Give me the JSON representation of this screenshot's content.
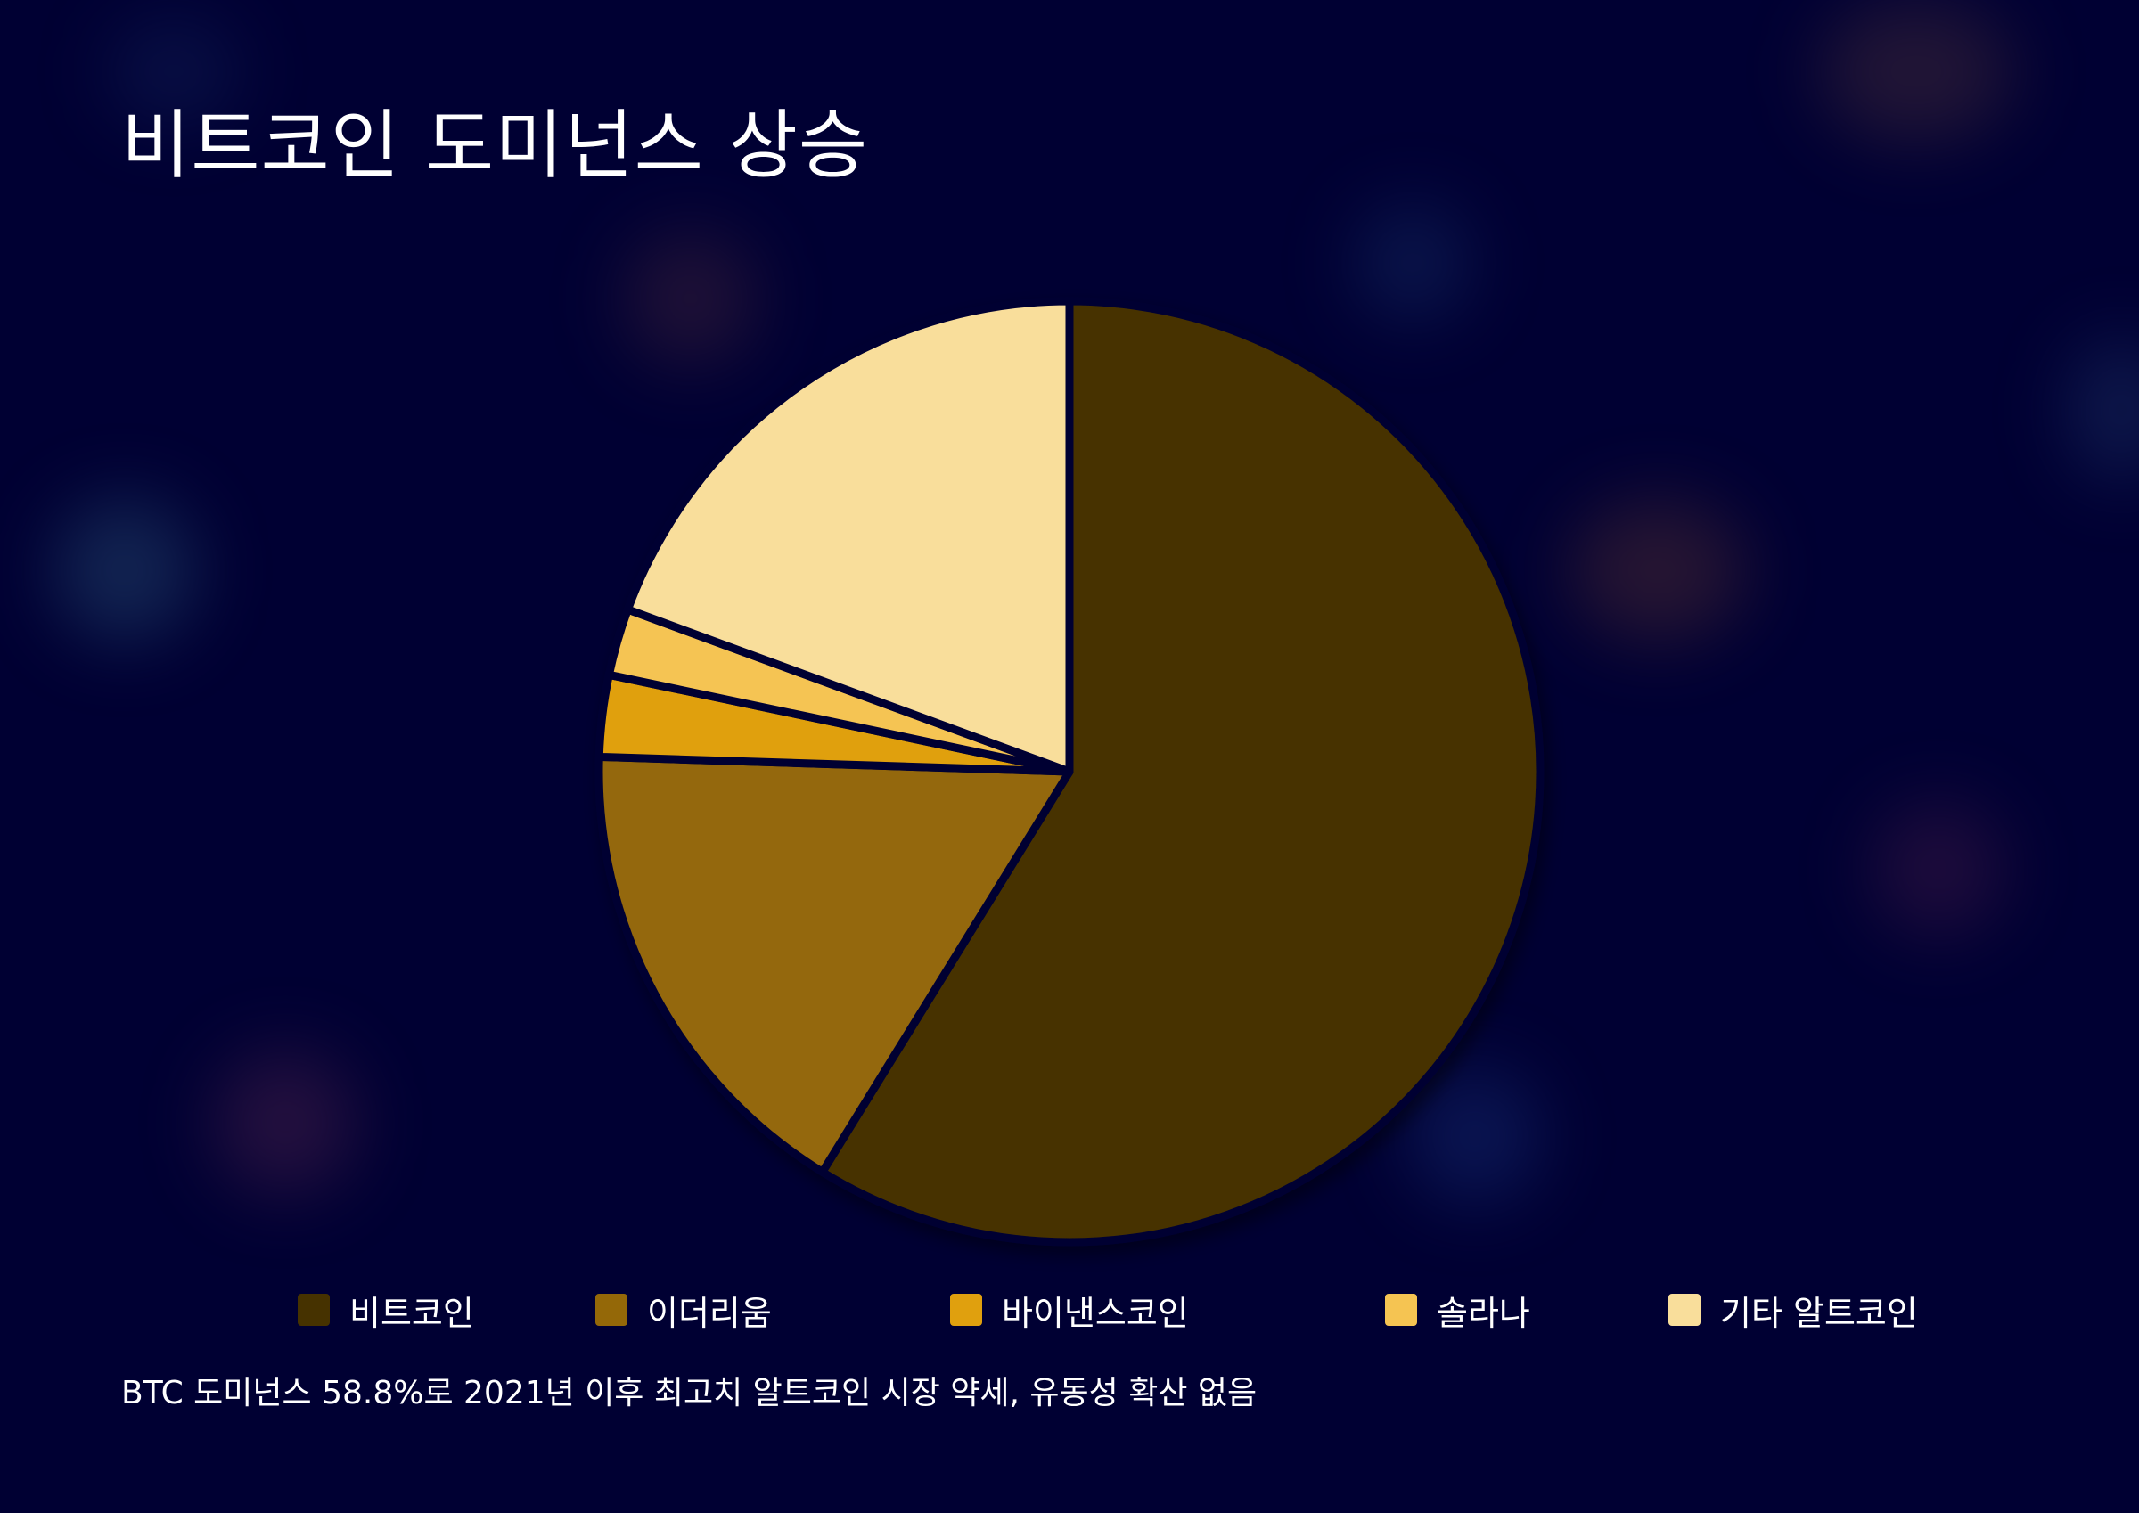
{
  "chart_data": {
    "type": "pie",
    "title": "비트코인 도미넌스 상승",
    "caption": "BTC 도미넌스 58.8%로 2021년 이후 최고치 알트코인 시장 약세, 유동성 확산 없음",
    "legend_position": "bottom",
    "categories": [
      "비트코인",
      "이더리움",
      "바이낸스코인",
      "솔라나",
      "기타 알트코인"
    ],
    "values": [
      58.8,
      16.7,
      2.8,
      2.3,
      19.4
    ],
    "colors": [
      "#463200",
      "#946808",
      "#E0A00E",
      "#F5C452",
      "#F9DE9B"
    ],
    "start_angle_deg": 0,
    "direction": "clockwise"
  },
  "background": "#000033",
  "separator_color": "#000033"
}
